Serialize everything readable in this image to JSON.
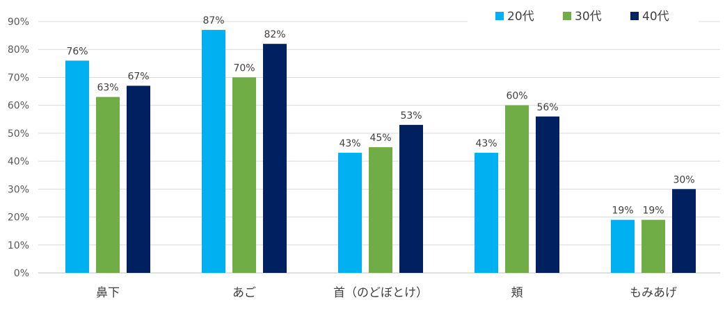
{
  "chart_data": {
    "type": "bar",
    "categories": [
      "鼻下",
      "あご",
      "首（のどぼとけ）",
      "頬",
      "もみあげ"
    ],
    "series": [
      {
        "name": "20代",
        "color": "#00B0F0",
        "values": [
          76,
          87,
          43,
          43,
          19
        ],
        "labels": [
          "76%",
          "87%",
          "43%",
          "43%",
          "19%"
        ]
      },
      {
        "name": "30代",
        "color": "#70AD47",
        "values": [
          63,
          70,
          45,
          60,
          19
        ],
        "labels": [
          "63%",
          "70%",
          "45%",
          "60%",
          "19%"
        ]
      },
      {
        "name": "40代",
        "color": "#002060",
        "values": [
          67,
          82,
          53,
          56,
          30
        ],
        "labels": [
          "67%",
          "82%",
          "53%",
          "56%",
          "30%"
        ]
      }
    ],
    "ylim": [
      0,
      90
    ],
    "yticks": [
      "0%",
      "10%",
      "20%",
      "30%",
      "40%",
      "50%",
      "60%",
      "70%",
      "80%",
      "90%"
    ],
    "grid": true,
    "legend": "top-right",
    "title": "",
    "xlabel": "",
    "ylabel": ""
  }
}
